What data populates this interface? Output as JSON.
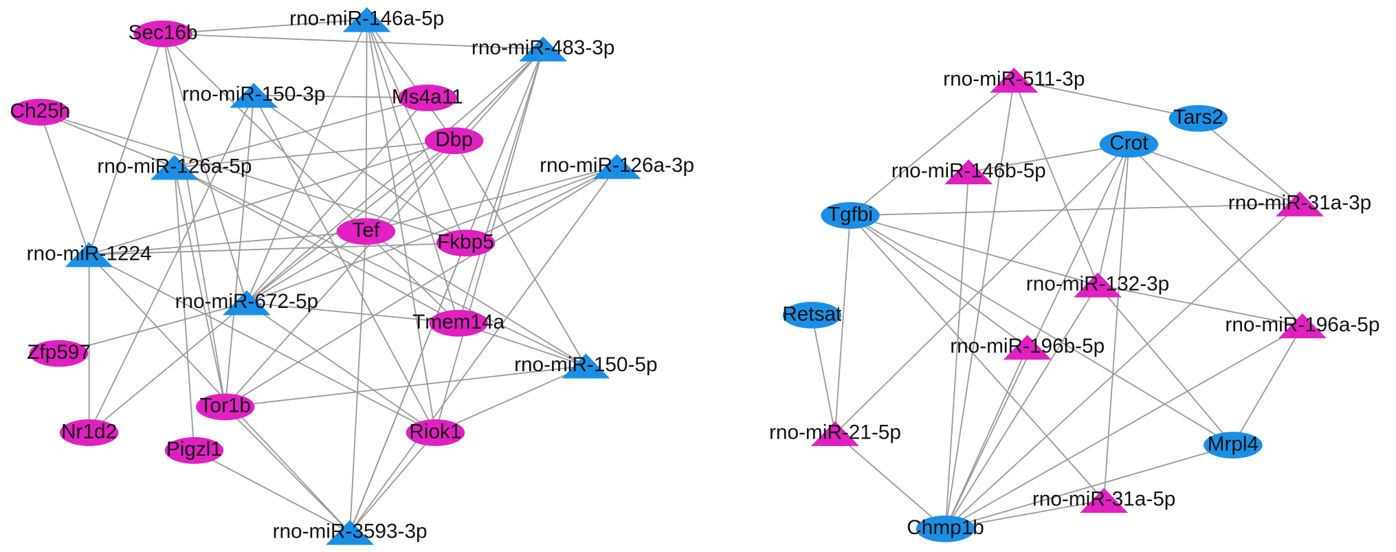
{
  "nodes": [
    {
      "label": "Sec16b"
    },
    {
      "label": "rno-miR-146a-5p"
    },
    {
      "label": "rno-miR-483-3p"
    },
    {
      "label": "Ch25h"
    },
    {
      "label": "rno-miR-150-3p"
    },
    {
      "label": "Ms4a11"
    },
    {
      "label": "Dbp"
    },
    {
      "label": "rno-miR-126a-5p"
    },
    {
      "label": "rno-miR-126a-3p"
    },
    {
      "label": "Tef"
    },
    {
      "label": "Fkbp5"
    },
    {
      "label": "rno-miR-1224"
    },
    {
      "label": "rno-miR-672-5p"
    },
    {
      "label": "Tmem14a"
    },
    {
      "label": "Zfp597"
    },
    {
      "label": "rno-miR-150-5p"
    },
    {
      "label": "Tor1b"
    },
    {
      "label": "Riok1"
    },
    {
      "label": "Nr1d2"
    },
    {
      "label": "Pigzl1"
    },
    {
      "label": "rno-miR-3593-3p"
    },
    {
      "label": "rno-miR-511-3p"
    },
    {
      "label": "Tars2"
    },
    {
      "label": "Crot"
    },
    {
      "label": "rno-miR-146b-5p"
    },
    {
      "label": "Tgfbi"
    },
    {
      "label": "rno-miR-31a-3p"
    },
    {
      "label": "rno-miR-132-3p"
    },
    {
      "label": "Retsat"
    },
    {
      "label": "rno-miR-196a-5p"
    },
    {
      "label": "rno-miR-196b-5p"
    },
    {
      "label": "rno-miR-21-5p"
    },
    {
      "label": "Mrpl4"
    },
    {
      "label": "rno-miR-31a-5p"
    },
    {
      "label": "Chmp1b"
    }
  ]
}
